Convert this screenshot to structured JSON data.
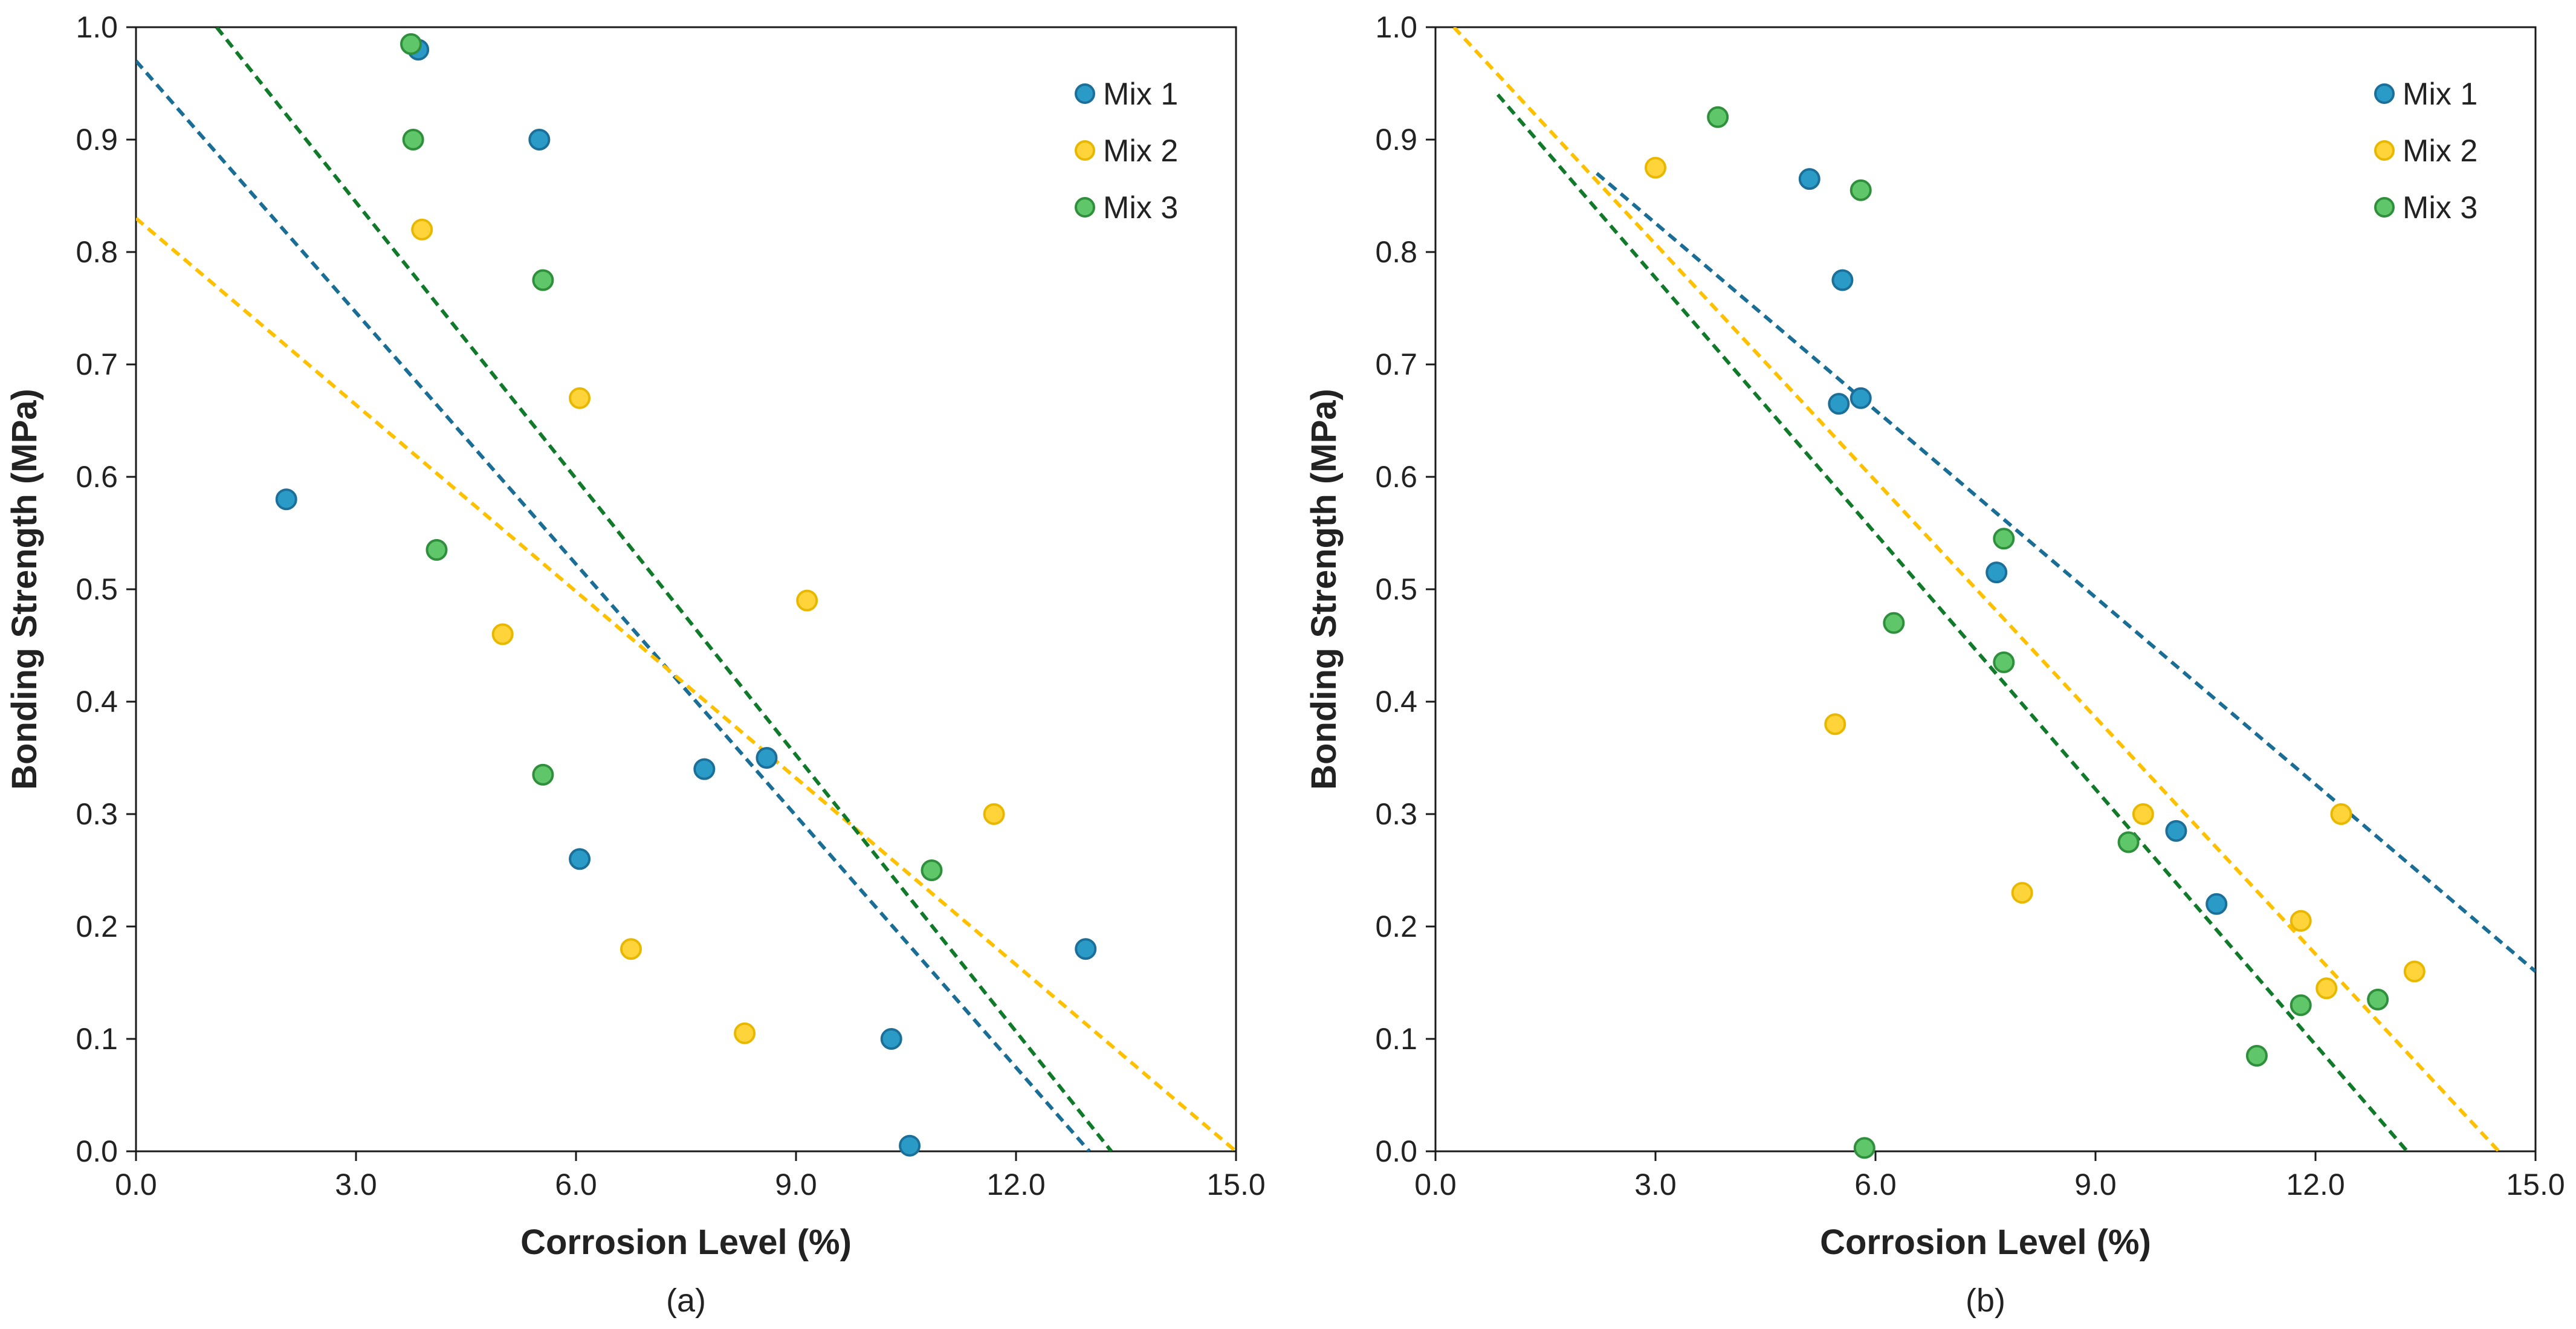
{
  "colors": {
    "mix1": "#2a9bc7",
    "mix2": "#ffd43b",
    "mix3": "#5fc66a",
    "trend1": "#1a6e96",
    "trend2": "#ffc000",
    "trend3": "#117a2a",
    "marker_edge_mix1": "#1c6f99",
    "marker_edge_mix2": "#e8b800",
    "marker_edge_mix3": "#2f8f3c"
  },
  "chart_data": [
    {
      "type": "scatter",
      "caption": "(a)",
      "xlabel": "Corrosion Level (%)",
      "ylabel": "Bonding Strength (MPa)",
      "xlim": [
        0,
        15
      ],
      "ylim": [
        0,
        1
      ],
      "xticks": [
        "0.0",
        "3.0",
        "6.0",
        "9.0",
        "12.0",
        "15.0"
      ],
      "yticks": [
        "0.0",
        "0.1",
        "0.2",
        "0.3",
        "0.4",
        "0.5",
        "0.6",
        "0.7",
        "0.8",
        "0.9",
        "1.0"
      ],
      "legend": [
        "Mix 1",
        "Mix 2",
        "Mix 3"
      ],
      "legend_position": "top-right",
      "series": [
        {
          "name": "Mix 1",
          "x": [
            2.05,
            3.85,
            5.5,
            6.05,
            7.75,
            8.6,
            10.3,
            10.55,
            12.95
          ],
          "y": [
            0.58,
            0.98,
            0.9,
            0.26,
            0.34,
            0.35,
            0.1,
            0.005,
            0.18
          ],
          "trend": [
            [
              0.0,
              0.97
            ],
            [
              13.0,
              0.0
            ]
          ]
        },
        {
          "name": "Mix 2",
          "x": [
            3.9,
            5.0,
            6.05,
            6.75,
            8.3,
            9.15,
            11.7
          ],
          "y": [
            0.82,
            0.46,
            0.67,
            0.18,
            0.105,
            0.49,
            0.3
          ],
          "trend": [
            [
              0.0,
              0.83
            ],
            [
              15.0,
              0.0
            ]
          ]
        },
        {
          "name": "Mix 3",
          "x": [
            3.75,
            3.78,
            4.1,
            5.55,
            5.55,
            10.85
          ],
          "y": [
            0.985,
            0.9,
            0.535,
            0.775,
            0.335,
            0.25
          ],
          "trend": [
            [
              1.1,
              1.0
            ],
            [
              13.3,
              0.0
            ]
          ]
        }
      ]
    },
    {
      "type": "scatter",
      "caption": "(b)",
      "xlabel": "Corrosion Level (%)",
      "ylabel": "Bonding Strength (MPa)",
      "xlim": [
        0,
        15
      ],
      "ylim": [
        0,
        1
      ],
      "xticks": [
        "0.0",
        "3.0",
        "6.0",
        "9.0",
        "12.0",
        "15.0"
      ],
      "yticks": [
        "0.0",
        "0.1",
        "0.2",
        "0.3",
        "0.4",
        "0.5",
        "0.6",
        "0.7",
        "0.8",
        "0.9",
        "1.0"
      ],
      "legend": [
        "Mix 1",
        "Mix 2",
        "Mix 3"
      ],
      "legend_position": "top-right",
      "series": [
        {
          "name": "Mix 1",
          "x": [
            5.1,
            5.5,
            5.55,
            5.8,
            7.65,
            10.1,
            10.65
          ],
          "y": [
            0.865,
            0.665,
            0.775,
            0.67,
            0.515,
            0.285,
            0.22
          ],
          "trend": [
            [
              2.2,
              0.87
            ],
            [
              15.0,
              0.16
            ]
          ]
        },
        {
          "name": "Mix 2",
          "x": [
            3.0,
            5.45,
            8.0,
            9.65,
            11.8,
            12.15,
            12.35,
            13.35
          ],
          "y": [
            0.875,
            0.38,
            0.23,
            0.3,
            0.205,
            0.145,
            0.3,
            0.16
          ],
          "trend": [
            [
              0.25,
              1.0
            ],
            [
              14.5,
              0.0
            ]
          ]
        },
        {
          "name": "Mix 3",
          "x": [
            3.85,
            5.8,
            6.25,
            7.75,
            7.75,
            9.45,
            11.2,
            11.8,
            12.85,
            5.85
          ],
          "y": [
            0.92,
            0.855,
            0.47,
            0.545,
            0.435,
            0.275,
            0.085,
            0.13,
            0.135,
            0.003
          ],
          "trend": [
            [
              0.85,
              0.94
            ],
            [
              13.25,
              0.0
            ]
          ]
        }
      ]
    }
  ]
}
